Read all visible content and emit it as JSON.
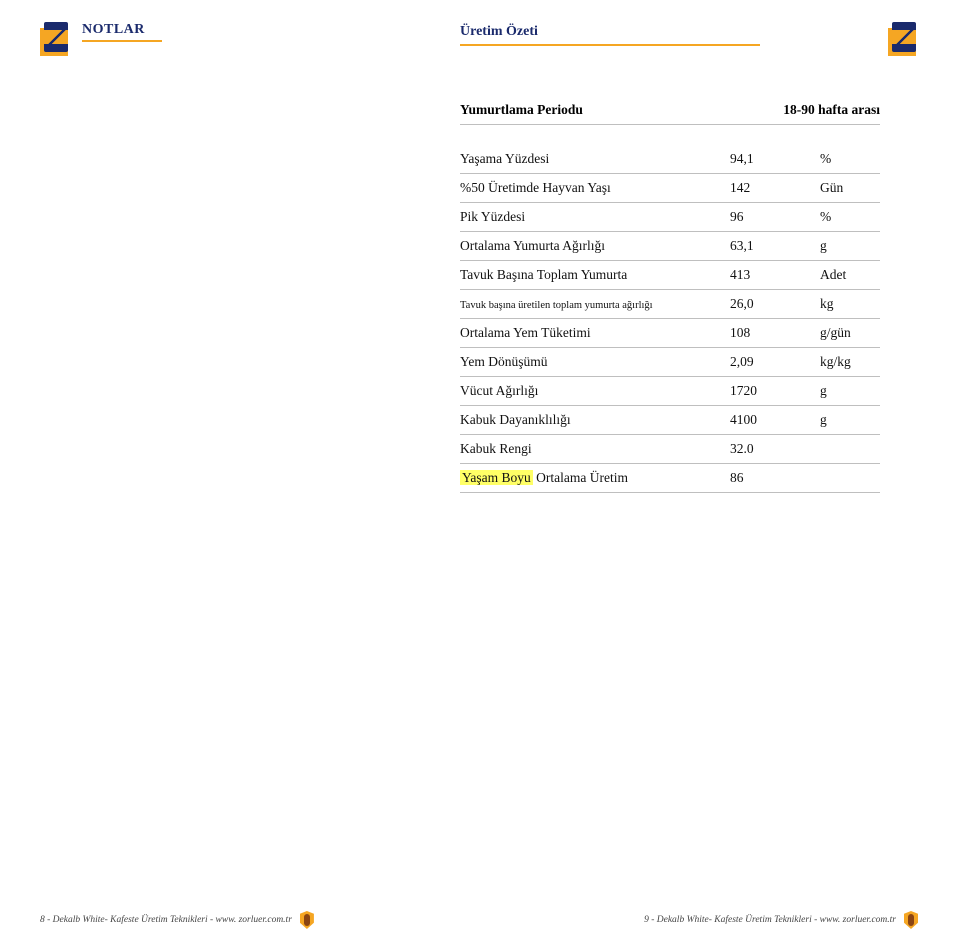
{
  "colors": {
    "brand_navy": "#1a2a6c",
    "brand_orange": "#f5a623",
    "rule_gray": "#bfbfbf",
    "highlight_yellow": "#ffff66",
    "text": "#111111",
    "background": "#ffffff"
  },
  "typography": {
    "base_family": "Georgia, Times New Roman, serif",
    "title_fontsize_pt": 14,
    "row_fontsize_pt": 13.5,
    "small_row_fontsize_pt": 10.5,
    "footer_fontsize_pt": 9.5
  },
  "header": {
    "notlar": "NOTLAR",
    "section_title": "Üretim Özeti"
  },
  "table": {
    "title_label": "Yumurtlama Periodu",
    "title_value": "18-90 hafta arası",
    "rows": [
      {
        "label": "Yaşama Yüzdesi",
        "value": "94,1",
        "unit": "%"
      },
      {
        "label": "%50 Üretimde Hayvan Yaşı",
        "value": "142",
        "unit": "Gün"
      },
      {
        "label": "Pik Yüzdesi",
        "value": "96",
        "unit": "%"
      },
      {
        "label": "Ortalama Yumurta Ağırlığı",
        "value": "63,1",
        "unit": "g"
      },
      {
        "label": "Tavuk Başına Toplam Yumurta",
        "value": "413",
        "unit": "Adet"
      },
      {
        "label": "Tavuk başına üretilen toplam yumurta ağırlığı",
        "value": "26,0",
        "unit": "kg",
        "small": true
      },
      {
        "label": "Ortalama Yem Tüketimi",
        "value": "108",
        "unit": "g/gün"
      },
      {
        "label": "Yem Dönüşümü",
        "value": "2,09",
        "unit": "kg/kg"
      },
      {
        "label": "Vücut Ağırlığı",
        "value": "1720",
        "unit": "g"
      },
      {
        "label": "Kabuk Dayanıklılığı",
        "value": "4100",
        "unit": "g"
      },
      {
        "label": "Kabuk Rengi",
        "value": "32.0",
        "unit": ""
      }
    ],
    "final_row": {
      "highlight_text": "Yaşam Boyu",
      "rest_text": " Ortalama Üretim",
      "value": "86"
    }
  },
  "footer": {
    "left": "8 - Dekalb White- Kafeste Üretim Teknikleri - www. zorluer.com.tr",
    "right": "9 - Dekalb White- Kafeste Üretim Teknikleri - www. zorluer.com.tr"
  }
}
